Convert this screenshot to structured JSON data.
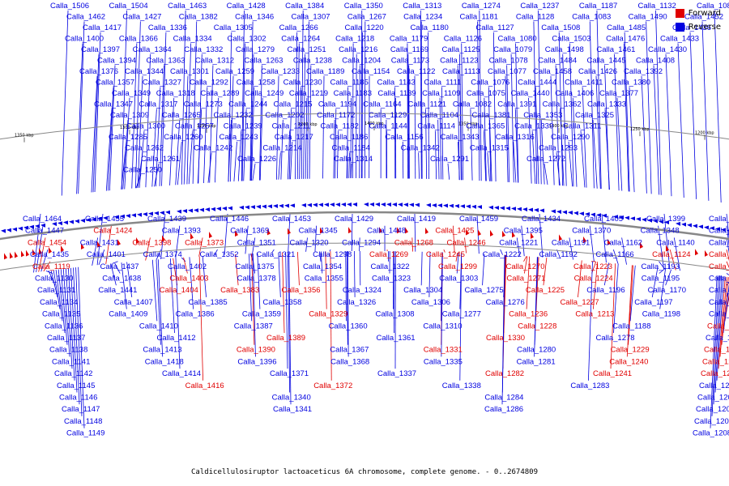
{
  "colors": {
    "forward": "#e00000",
    "reverse": "#0000e0",
    "axis": "#888888",
    "ruler": "#000000"
  },
  "legend": {
    "forward_label": "Forward",
    "reverse_label": "Reverse"
  },
  "caption": {
    "title": "Caldicellulosiruptor lactoaceticus 6A chromosome, complete genome.",
    "range": "- 0..2674809"
  },
  "ruler": [
    "1350 kbp",
    "1300 kbp",
    "1250 kbp",
    "1200 kbp",
    "1400 kbp",
    "1350 kbp",
    "1300 kbp",
    "1250 kbp",
    "1200 kbp"
  ],
  "top_labels": [
    [
      "Calla_1506",
      "reverse"
    ],
    [
      "Calla_1504",
      "reverse"
    ],
    [
      "Calla_1463",
      "reverse"
    ],
    [
      "Calla_1428",
      "reverse"
    ],
    [
      "Calla_1384",
      "reverse"
    ],
    [
      "Calla_1350",
      "reverse"
    ],
    [
      "Calla_1313",
      "reverse"
    ],
    [
      "Calla_1274",
      "reverse"
    ],
    [
      "Calla_1237",
      "reverse"
    ],
    [
      "Calla_1187",
      "reverse"
    ],
    [
      "Calla_1132",
      "reverse"
    ],
    [
      "Calla_1084",
      "reverse"
    ],
    [
      "Calla_1462",
      "reverse"
    ],
    [
      "Calla_1427",
      "reverse"
    ],
    [
      "Calla_1382",
      "reverse"
    ],
    [
      "Calla_1346",
      "reverse"
    ],
    [
      "Calla_1307",
      "reverse"
    ],
    [
      "Calla_1267",
      "reverse"
    ],
    [
      "Calla_1234",
      "reverse"
    ],
    [
      "Calla_1181",
      "reverse"
    ],
    [
      "Calla_1128",
      "reverse"
    ],
    [
      "Calla_1083",
      "reverse"
    ],
    [
      "Calla_1490",
      "reverse"
    ],
    [
      "Calla_1452",
      "reverse"
    ],
    [
      "Calla_1417",
      "reverse"
    ],
    [
      "Calla_1336",
      "reverse"
    ],
    [
      "Calla_1305",
      "reverse"
    ],
    [
      "Calla_1266",
      "reverse"
    ],
    [
      "Calla_1220",
      "reverse"
    ],
    [
      "Calla_1180",
      "reverse"
    ],
    [
      "Calla_1127",
      "reverse"
    ],
    [
      "Calla_1508",
      "reverse"
    ],
    [
      "Calla_1485",
      "reverse"
    ],
    [
      "Calla_1436",
      "reverse"
    ],
    [
      "Calla_1400",
      "reverse"
    ],
    [
      "Calla_1366",
      "reverse"
    ],
    [
      "Calla_1334",
      "reverse"
    ],
    [
      "Calla_1302",
      "reverse"
    ],
    [
      "Calla_1264",
      "reverse"
    ],
    [
      "Calla_1218",
      "reverse"
    ],
    [
      "Calla_1179",
      "reverse"
    ],
    [
      "Calla_1126",
      "reverse"
    ],
    [
      "Calla_1080",
      "reverse"
    ],
    [
      "Calla_1503",
      "reverse"
    ],
    [
      "Calla_1476",
      "reverse"
    ],
    [
      "Calla_1433",
      "reverse"
    ],
    [
      "Calla_1397",
      "reverse"
    ],
    [
      "Calla_1364",
      "reverse"
    ],
    [
      "Calla_1332",
      "reverse"
    ],
    [
      "Calla_1279",
      "reverse"
    ],
    [
      "Calla_1251",
      "reverse"
    ],
    [
      "Calla_1216",
      "reverse"
    ],
    [
      "Calla_1169",
      "reverse"
    ],
    [
      "Calla_1125",
      "reverse"
    ],
    [
      "Calla_1079",
      "reverse"
    ],
    [
      "Calla_1498",
      "reverse"
    ],
    [
      "Calla_1461",
      "reverse"
    ],
    [
      "Calla_1430",
      "reverse"
    ],
    [
      "Calla_1394",
      "reverse"
    ],
    [
      "Calla_1363",
      "reverse"
    ],
    [
      "Calla_1312",
      "reverse"
    ],
    [
      "Calla_1263",
      "reverse"
    ],
    [
      "Calla_1238",
      "reverse"
    ],
    [
      "Calla_1204",
      "reverse"
    ],
    [
      "Calla_1173",
      "reverse"
    ],
    [
      "Calla_1123",
      "reverse"
    ],
    [
      "Calla_1078",
      "reverse"
    ],
    [
      "Calla_1484",
      "reverse"
    ],
    [
      "Calla_1445",
      "reverse"
    ],
    [
      "Calla_1408",
      "reverse"
    ],
    [
      "Calla_1376",
      "reverse"
    ],
    [
      "Calla_1344",
      "reverse"
    ],
    [
      "Calla_1301",
      "reverse"
    ],
    [
      "Calla_1259",
      "reverse"
    ],
    [
      "Calla_1233",
      "reverse"
    ],
    [
      "Calla_1189",
      "reverse"
    ],
    [
      "Calla_1154",
      "reverse"
    ],
    [
      "Calla_1122",
      "reverse"
    ],
    [
      "Calla_1113",
      "reverse"
    ],
    [
      "Calla_1077",
      "reverse"
    ],
    [
      "Calla_1458",
      "reverse"
    ],
    [
      "Calla_1426",
      "reverse"
    ],
    [
      "Calla_1392",
      "reverse"
    ],
    [
      "Calla_1357",
      "reverse"
    ],
    [
      "Calla_1327",
      "reverse"
    ],
    [
      "Calla_1292",
      "reverse"
    ],
    [
      "Calla_1258",
      "reverse"
    ],
    [
      "Calla_1230",
      "reverse"
    ],
    [
      "Calla_1185",
      "reverse"
    ],
    [
      "Calla_1143",
      "reverse"
    ],
    [
      "Calla_1111",
      "reverse"
    ],
    [
      "Calla_1076",
      "reverse"
    ],
    [
      "Calla_1444",
      "reverse"
    ],
    [
      "Calla_1411",
      "reverse"
    ],
    [
      "Calla_1380",
      "reverse"
    ],
    [
      "Calla_1349",
      "reverse"
    ],
    [
      "Calla_1318",
      "reverse"
    ],
    [
      "Calla_1289",
      "reverse"
    ],
    [
      "Calla_1249",
      "reverse"
    ],
    [
      "Calla_1219",
      "reverse"
    ],
    [
      "Calla_1183",
      "reverse"
    ],
    [
      "Calla_1139",
      "reverse"
    ],
    [
      "Calla_1109",
      "reverse"
    ],
    [
      "Calla_1075",
      "reverse"
    ],
    [
      "Calla_1440",
      "reverse"
    ],
    [
      "Calla_1406",
      "reverse"
    ],
    [
      "Calla_1377",
      "reverse"
    ],
    [
      "Calla_1347",
      "reverse"
    ],
    [
      "Calla_1317",
      "reverse"
    ],
    [
      "Calla_1273",
      "reverse"
    ],
    [
      "Calla_1244",
      "reverse"
    ],
    [
      "Calla_1215",
      "reverse"
    ],
    [
      "Calla_1194",
      "reverse"
    ],
    [
      "Calla_1164",
      "reverse"
    ],
    [
      "Calla_1121",
      "reverse"
    ],
    [
      "Calla_1082",
      "reverse"
    ],
    [
      "Calla_1391",
      "reverse"
    ],
    [
      "Calla_1362",
      "reverse"
    ],
    [
      "Calla_1333",
      "reverse"
    ],
    [
      "Calla_1309",
      "reverse"
    ],
    [
      "Calla_1265",
      "reverse"
    ],
    [
      "Calla_1232",
      "reverse"
    ],
    [
      "Calla_1202",
      "reverse"
    ],
    [
      "Calla_1172",
      "reverse"
    ],
    [
      "Calla_1129",
      "reverse"
    ],
    [
      "Calla_1104",
      "reverse"
    ],
    [
      "Calla_1381",
      "reverse"
    ],
    [
      "Calla_1353",
      "reverse"
    ],
    [
      "Calla_1325",
      "reverse"
    ],
    [
      "Calla_1300",
      "reverse"
    ],
    [
      "Calla_1257",
      "reverse"
    ],
    [
      "Calla_1239",
      "reverse"
    ],
    [
      "Calla_1211",
      "reverse"
    ],
    [
      "Calla_1182",
      "reverse"
    ],
    [
      "Calla_1144",
      "reverse"
    ],
    [
      "Calla_1114",
      "reverse"
    ],
    [
      "Calla_1365",
      "reverse"
    ],
    [
      "Calla_1339",
      "reverse"
    ],
    [
      "Calla_1311",
      "reverse"
    ],
    [
      "Calla_1285",
      "reverse"
    ],
    [
      "Calla_1260",
      "reverse"
    ],
    [
      "Calla_1243",
      "reverse"
    ],
    [
      "Calla_1217",
      "reverse"
    ],
    [
      "Calla_1186",
      "reverse"
    ],
    [
      "Calla_1156",
      "reverse"
    ],
    [
      "Calla_1343",
      "reverse"
    ],
    [
      "Calla_1316",
      "reverse"
    ],
    [
      "Calla_1290",
      "reverse"
    ],
    [
      "Calla_1262",
      "reverse"
    ],
    [
      "Calla_1242",
      "reverse"
    ],
    [
      "Calla_1214",
      "reverse"
    ],
    [
      "Calla_1184",
      "reverse"
    ],
    [
      "Calla_1342",
      "reverse"
    ],
    [
      "Calla_1315",
      "reverse"
    ],
    [
      "Calla_1293",
      "reverse"
    ],
    [
      "Calla_1261",
      "reverse"
    ],
    [
      "Calla_1226",
      "reverse"
    ],
    [
      "Calla_1314",
      "reverse"
    ],
    [
      "Calla_1291",
      "reverse"
    ],
    [
      "Calla_1272",
      "reverse"
    ],
    [
      "Calla_1250",
      "reverse"
    ]
  ],
  "bottom_labels": [
    [
      "Calla_1464",
      "reverse"
    ],
    [
      "Calla_1455",
      "reverse"
    ],
    [
      "Calla_1439",
      "reverse"
    ],
    [
      "Calla_1446",
      "reverse"
    ],
    [
      "Calla_1453",
      "reverse"
    ],
    [
      "Calla_1429",
      "reverse"
    ],
    [
      "Calla_1419",
      "reverse"
    ],
    [
      "Calla_1459",
      "reverse"
    ],
    [
      "Calla_1434",
      "reverse"
    ],
    [
      "Calla_1405",
      "reverse"
    ],
    [
      "Calla_1399",
      "reverse"
    ],
    [
      "Calla_1379",
      "reverse"
    ],
    [
      "Calla_1447",
      "reverse"
    ],
    [
      "Calla_1424",
      "forward"
    ],
    [
      "Calla_1393",
      "reverse"
    ],
    [
      "Calla_1369",
      "reverse"
    ],
    [
      "Calla_1345",
      "reverse"
    ],
    [
      "Calla_1448",
      "reverse"
    ],
    [
      "Calla_1425",
      "forward"
    ],
    [
      "Calla_1395",
      "reverse"
    ],
    [
      "Calla_1370",
      "reverse"
    ],
    [
      "Calla_1348",
      "reverse"
    ],
    [
      "Calla_1319",
      "reverse"
    ],
    [
      "Calla_1454",
      "forward"
    ],
    [
      "Calla_1431",
      "reverse"
    ],
    [
      "Calla_1398",
      "forward"
    ],
    [
      "Calla_1373",
      "forward"
    ],
    [
      "Calla_1351",
      "reverse"
    ],
    [
      "Calla_1320",
      "reverse"
    ],
    [
      "Calla_1294",
      "reverse"
    ],
    [
      "Calla_1268",
      "forward"
    ],
    [
      "Calla_1246",
      "forward"
    ],
    [
      "Calla_1221",
      "reverse"
    ],
    [
      "Calla_1191",
      "reverse"
    ],
    [
      "Calla_1162",
      "reverse"
    ],
    [
      "Calla_1140",
      "reverse"
    ],
    [
      "Calla_1112",
      "reverse"
    ],
    [
      "Calla_1435",
      "reverse"
    ],
    [
      "Calla_1401",
      "reverse"
    ],
    [
      "Calla_1374",
      "reverse"
    ],
    [
      "Calla_1352",
      "reverse"
    ],
    [
      "Calla_1321",
      "reverse"
    ],
    [
      "Calla_1298",
      "reverse"
    ],
    [
      "Calla_1269",
      "forward"
    ],
    [
      "Calla_1245",
      "forward"
    ],
    [
      "Calla_1222",
      "reverse"
    ],
    [
      "Calla_1192",
      "reverse"
    ],
    [
      "Calla_1166",
      "reverse"
    ],
    [
      "Calla_1124",
      "forward"
    ],
    [
      "Calla_1115",
      "forward"
    ],
    [
      "Calla_1119",
      "forward"
    ],
    [
      "Calla_1437",
      "reverse"
    ],
    [
      "Calla_1402",
      "reverse"
    ],
    [
      "Calla_1375",
      "reverse"
    ],
    [
      "Calla_1354",
      "reverse"
    ],
    [
      "Calla_1322",
      "reverse"
    ],
    [
      "Calla_1299",
      "forward"
    ],
    [
      "Calla_1270",
      "forward"
    ],
    [
      "Calla_1223",
      "forward"
    ],
    [
      "Calla_1193",
      "reverse"
    ],
    [
      "Calla_1167",
      "forward"
    ],
    [
      "Calla_1130",
      "reverse"
    ],
    [
      "Calla_1438",
      "reverse"
    ],
    [
      "Calla_1403",
      "forward"
    ],
    [
      "Calla_1378",
      "reverse"
    ],
    [
      "Calla_1355",
      "reverse"
    ],
    [
      "Calla_1323",
      "reverse"
    ],
    [
      "Calla_1303",
      "reverse"
    ],
    [
      "Calla_1271",
      "forward"
    ],
    [
      "Calla_1224",
      "forward"
    ],
    [
      "Calla_1195",
      "reverse"
    ],
    [
      "Calla_1168",
      "reverse"
    ],
    [
      "Calla_1131",
      "reverse"
    ],
    [
      "Calla_1441",
      "reverse"
    ],
    [
      "Calla_1404",
      "forward"
    ],
    [
      "Calla_1383",
      "forward"
    ],
    [
      "Calla_1356",
      "forward"
    ],
    [
      "Calla_1324",
      "reverse"
    ],
    [
      "Calla_1304",
      "reverse"
    ],
    [
      "Calla_1275",
      "reverse"
    ],
    [
      "Calla_1225",
      "forward"
    ],
    [
      "Calla_1196",
      "reverse"
    ],
    [
      "Calla_1170",
      "reverse"
    ],
    [
      "Calla_1133",
      "reverse"
    ],
    [
      "Calla_1134",
      "reverse"
    ],
    [
      "Calla_1407",
      "reverse"
    ],
    [
      "Calla_1385",
      "reverse"
    ],
    [
      "Calla_1358",
      "reverse"
    ],
    [
      "Calla_1326",
      "reverse"
    ],
    [
      "Calla_1306",
      "reverse"
    ],
    [
      "Calla_1276",
      "reverse"
    ],
    [
      "Calla_1227",
      "forward"
    ],
    [
      "Calla_1197",
      "reverse"
    ],
    [
      "Calla_1171",
      "reverse"
    ],
    [
      "Calla_1135",
      "reverse"
    ],
    [
      "Calla_1409",
      "reverse"
    ],
    [
      "Calla_1386",
      "reverse"
    ],
    [
      "Calla_1359",
      "reverse"
    ],
    [
      "Calla_1329",
      "forward"
    ],
    [
      "Calla_1308",
      "reverse"
    ],
    [
      "Calla_1277",
      "reverse"
    ],
    [
      "Calla_1236",
      "forward"
    ],
    [
      "Calla_1213",
      "forward"
    ],
    [
      "Calla_1198",
      "reverse"
    ],
    [
      "Calla_1174",
      "reverse"
    ],
    [
      "Calla_1136",
      "reverse"
    ],
    [
      "Calla_1410",
      "reverse"
    ],
    [
      "Calla_1387",
      "reverse"
    ],
    [
      "Calla_1360",
      "reverse"
    ],
    [
      "Calla_1310",
      "reverse"
    ],
    [
      "Calla_1228",
      "forward"
    ],
    [
      "Calla_1188",
      "reverse"
    ],
    [
      "Calla_1176",
      "forward"
    ],
    [
      "Calla_1137",
      "reverse"
    ],
    [
      "Calla_1412",
      "reverse"
    ],
    [
      "Calla_1389",
      "forward"
    ],
    [
      "Calla_1361",
      "reverse"
    ],
    [
      "Calla_1330",
      "forward"
    ],
    [
      "Calla_1278",
      "reverse"
    ],
    [
      "Calla_1190",
      "reverse"
    ],
    [
      "Calla_1138",
      "reverse"
    ],
    [
      "Calla_1413",
      "reverse"
    ],
    [
      "Calla_1390",
      "forward"
    ],
    [
      "Calla_1367",
      "reverse"
    ],
    [
      "Calla_1331",
      "forward"
    ],
    [
      "Calla_1280",
      "reverse"
    ],
    [
      "Calla_1229",
      "forward"
    ],
    [
      "Calla_1199",
      "forward"
    ],
    [
      "Calla_1141",
      "reverse"
    ],
    [
      "Calla_1418",
      "reverse"
    ],
    [
      "Calla_1396",
      "reverse"
    ],
    [
      "Calla_1368",
      "reverse"
    ],
    [
      "Calla_1335",
      "reverse"
    ],
    [
      "Calla_1281",
      "reverse"
    ],
    [
      "Calla_1240",
      "forward"
    ],
    [
      "Calla_1200",
      "forward"
    ],
    [
      "Calla_1142",
      "reverse"
    ],
    [
      "Calla_1414",
      "reverse"
    ],
    [
      "Calla_1371",
      "reverse"
    ],
    [
      "Calla_1337",
      "reverse"
    ],
    [
      "Calla_1282",
      "forward"
    ],
    [
      "Calla_1241",
      "forward"
    ],
    [
      "Calla_1201",
      "forward"
    ],
    [
      "Calla_1145",
      "reverse"
    ],
    [
      "Calla_1416",
      "forward"
    ],
    [
      "Calla_1372",
      "forward"
    ],
    [
      "Calla_1338",
      "reverse"
    ],
    [
      "Calla_1283",
      "reverse"
    ],
    [
      "Calla_1203",
      "reverse"
    ],
    [
      "Calla_1146",
      "reverse"
    ],
    [
      "Calla_1340",
      "reverse"
    ],
    [
      "Calla_1284",
      "reverse"
    ],
    [
      "Calla_1205",
      "reverse"
    ],
    [
      "Calla_1147",
      "reverse"
    ],
    [
      "Calla_1341",
      "reverse"
    ],
    [
      "Calla_1286",
      "reverse"
    ],
    [
      "Calla_1206",
      "reverse"
    ],
    [
      "Calla_1148",
      "reverse"
    ],
    [
      "Calla_1207",
      "reverse"
    ],
    [
      "Calla_1149",
      "reverse"
    ],
    [
      "Calla_1208",
      "reverse"
    ],
    [
      "Calla_1150",
      "reverse"
    ]
  ]
}
